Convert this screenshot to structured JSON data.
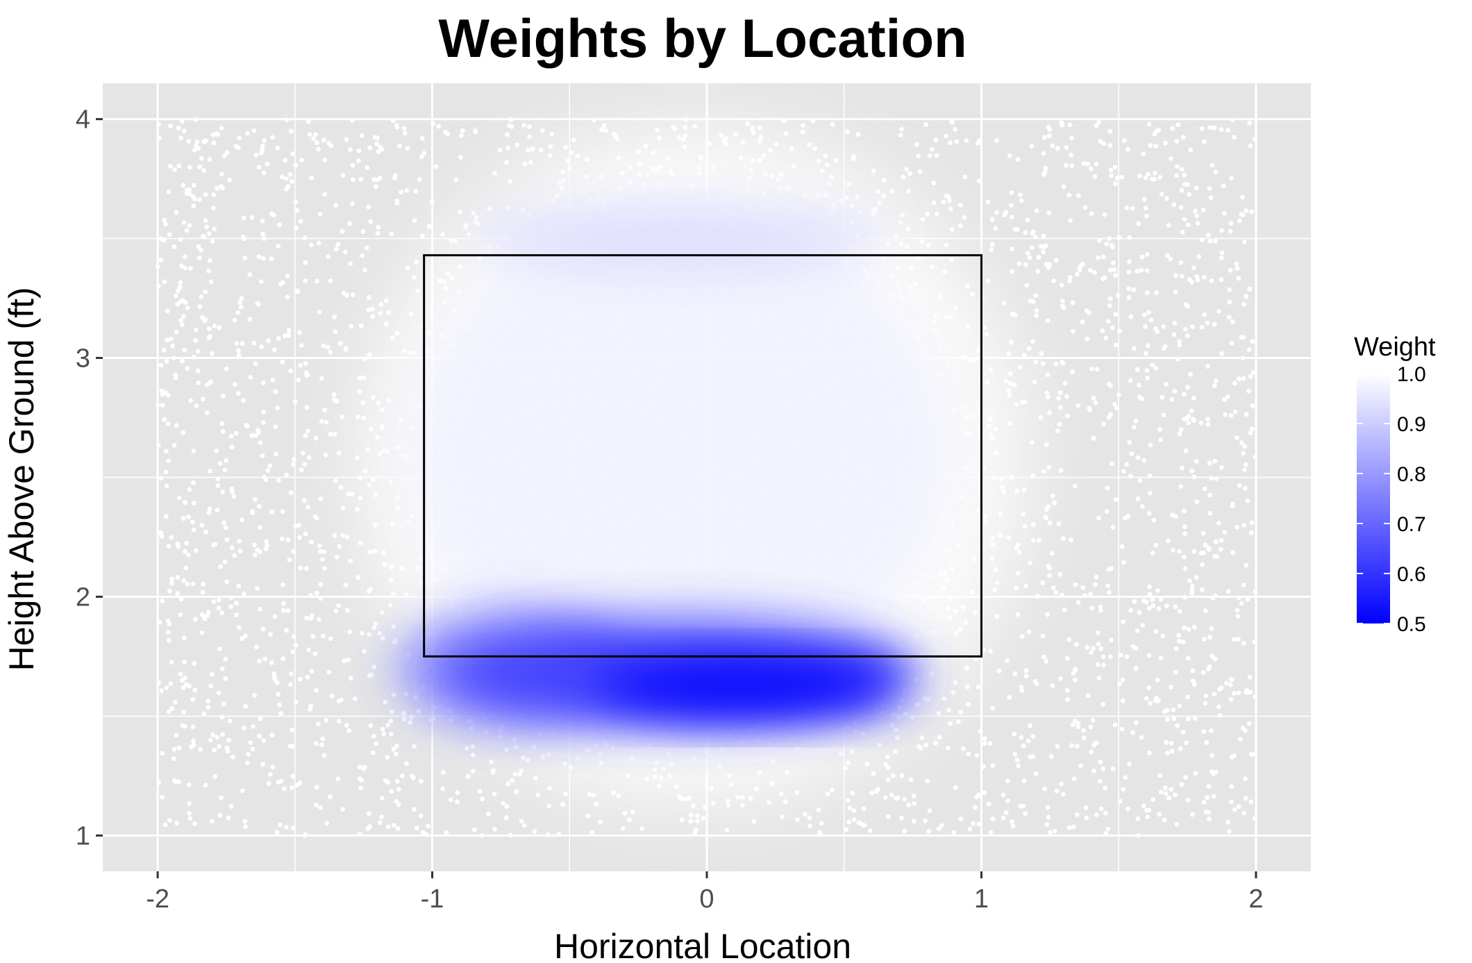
{
  "chart_data": {
    "type": "scatter",
    "title": "Weights by Location",
    "xlabel": "Horizontal Location",
    "ylabel": "Height Above Ground (ft)",
    "xlim": [
      -2.2,
      2.2
    ],
    "ylim": [
      0.85,
      4.15
    ],
    "x_ticks": [
      -2,
      -1,
      0,
      1,
      2
    ],
    "y_ticks": [
      1,
      2,
      3,
      4
    ],
    "x_tick_labels": [
      "-2",
      "-1",
      "0",
      "1",
      "2"
    ],
    "y_tick_labels": [
      "1",
      "2",
      "3",
      "4"
    ],
    "grid": true,
    "panel_background": "#e5e5e5",
    "strike_zone": {
      "x_min": -1.03,
      "x_max": 1.0,
      "y_min": 1.75,
      "y_max": 3.43
    },
    "points_extent": {
      "x_min": -2.0,
      "x_max": 2.0,
      "y_min": 1.0,
      "y_max": 4.0
    },
    "weight_regions": [
      {
        "x_center": 0.15,
        "y_center": 1.62,
        "x_spread": 0.45,
        "y_spread": 0.1,
        "weight": 0.5
      },
      {
        "x_center": -0.1,
        "y_center": 1.68,
        "x_spread": 0.7,
        "y_spread": 0.18,
        "weight": 0.62
      },
      {
        "x_center": -0.7,
        "y_center": 1.7,
        "x_spread": 0.35,
        "y_spread": 0.2,
        "weight": 0.78
      },
      {
        "x_center": -0.1,
        "y_center": 3.5,
        "x_spread": 0.6,
        "y_spread": 0.12,
        "weight": 0.92
      },
      {
        "x_center": -0.1,
        "y_center": 2.6,
        "x_spread": 0.8,
        "y_spread": 0.8,
        "weight": 0.97
      }
    ],
    "legend": {
      "title": "Weight",
      "position": "right",
      "min": 0.5,
      "max": 1.0,
      "ticks": [
        0.5,
        0.6,
        0.7,
        0.8,
        0.9,
        1.0
      ],
      "tick_labels": [
        "0.5",
        "0.6",
        "0.7",
        "0.8",
        "0.9",
        "1.0"
      ],
      "color_low": "#0000ff",
      "color_high": "#ffffff"
    }
  }
}
